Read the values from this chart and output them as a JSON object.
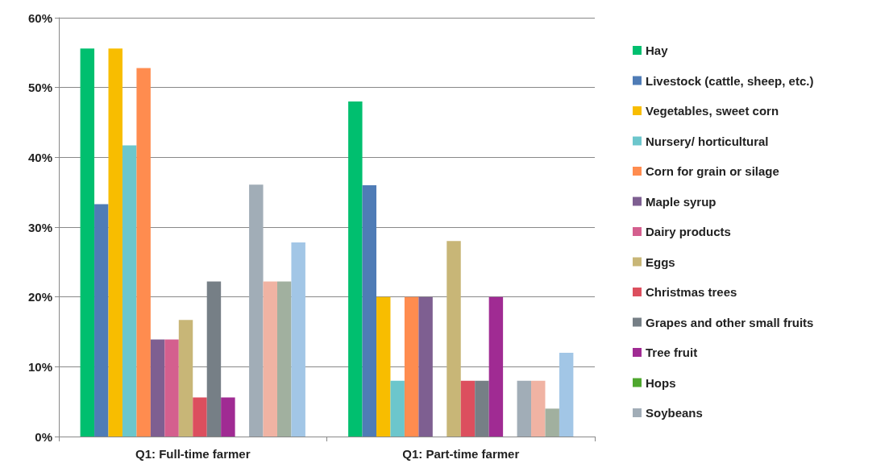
{
  "chart_data": {
    "type": "bar",
    "categories": [
      "Q1: Full-time farmer",
      "Q1: Part-time farmer"
    ],
    "series": [
      {
        "name": "Hay",
        "color": "#00bf6f",
        "values": [
          55.6,
          48
        ]
      },
      {
        "name": "Livestock (cattle, sheep, etc.)",
        "color": "#4f7cb6",
        "values": [
          33.3,
          36
        ]
      },
      {
        "name": "Vegetables, sweet corn",
        "color": "#f8bd00",
        "values": [
          55.6,
          20
        ]
      },
      {
        "name": "Nursery/ horticultural",
        "color": "#6cc6cc",
        "values": [
          41.7,
          8
        ]
      },
      {
        "name": "Corn for grain or silage",
        "color": "#ff8c4f",
        "values": [
          52.8,
          20
        ]
      },
      {
        "name": "Maple syrup",
        "color": "#7e5f91",
        "values": [
          13.9,
          20
        ]
      },
      {
        "name": "Dairy products",
        "color": "#d45f8e",
        "values": [
          13.9,
          0
        ]
      },
      {
        "name": "Eggs",
        "color": "#c8b677",
        "values": [
          16.7,
          28
        ]
      },
      {
        "name": "Christmas trees",
        "color": "#dc4f5e",
        "values": [
          5.6,
          8
        ]
      },
      {
        "name": "Grapes and other small fruits",
        "color": "#767f86",
        "values": [
          22.2,
          8
        ]
      },
      {
        "name": "Tree fruit",
        "color": "#a02b93",
        "values": [
          5.6,
          20
        ]
      },
      {
        "name": "Hops",
        "color": "#4ea72e",
        "values": [
          0,
          0
        ]
      },
      {
        "name": "Soybeans",
        "color": "#a1adb7",
        "values": [
          36.1,
          8
        ]
      },
      {
        "color": "#f0b3a3",
        "values": [
          22.2,
          8
        ]
      },
      {
        "color": "#a1b09f",
        "values": [
          22.2,
          4
        ]
      },
      {
        "color": "#a2c6e6",
        "values": [
          27.8,
          12
        ]
      }
    ],
    "ylim": [
      0,
      60
    ],
    "yticks": [
      {
        "value": 0,
        "label": "0%"
      },
      {
        "value": 10,
        "label": "10%"
      },
      {
        "value": 20,
        "label": "20%"
      },
      {
        "value": 30,
        "label": "30%"
      },
      {
        "value": 40,
        "label": "40%"
      },
      {
        "value": 50,
        "label": "50%"
      },
      {
        "value": 60,
        "label": "60%"
      }
    ],
    "grid": "y",
    "legend": "right"
  }
}
